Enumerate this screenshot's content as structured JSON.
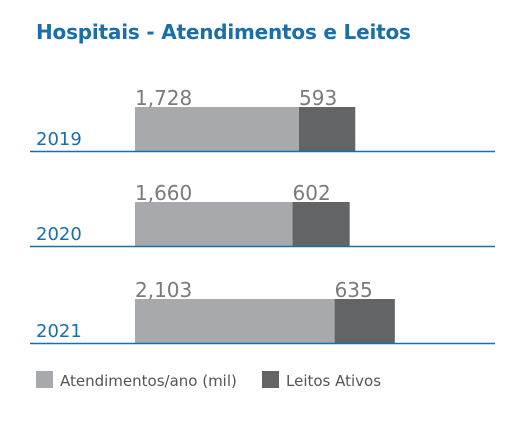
{
  "chart_data": {
    "type": "bar",
    "title": "Hospitais - Atendimentos e Leitos",
    "categories": [
      "2019",
      "2020",
      "2021"
    ],
    "stacked": true,
    "orientation": "horizontal",
    "series": [
      {
        "name": "Atendimentos/ano (mil)",
        "values": [
          1728,
          1660,
          2103
        ],
        "labels": [
          "1,728",
          "1,660",
          "2,103"
        ],
        "color": "#a7a9ac"
      },
      {
        "name": "Leitos Ativos",
        "values": [
          593,
          602,
          635
        ],
        "labels": [
          "593",
          "602",
          "635"
        ],
        "color": "#636466"
      }
    ],
    "legend": "bottom-left",
    "axis_color": "#1a6fa8"
  }
}
